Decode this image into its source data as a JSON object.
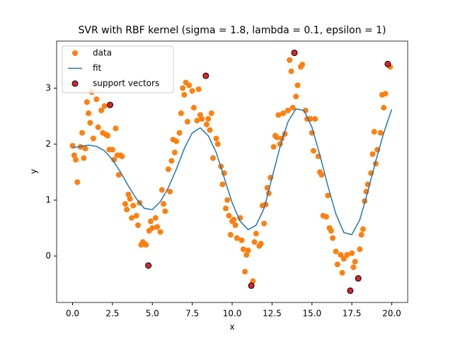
{
  "chart_data": {
    "type": "scatter",
    "title": "SVR with RBF kernel (sigma = 1.8, lambda = 0.1, epsilon = 1)",
    "x_label": "x",
    "y_label": "y",
    "xlim": [
      -1,
      21
    ],
    "ylim": [
      -0.83,
      3.84
    ],
    "xticks": [
      {
        "value": 0,
        "label": "0.0"
      },
      2.5,
      {
        "value": 5,
        "label": "5.0"
      },
      7.5,
      {
        "value": 10,
        "label": "10.0"
      },
      12.5,
      {
        "value": 15,
        "label": "15.0"
      },
      17.5,
      {
        "value": 20,
        "label": "20.0"
      }
    ],
    "yticks": [
      0,
      1,
      2,
      3
    ],
    "legend": "upper left",
    "series": [
      {
        "name": "data",
        "kind": "scatter",
        "color": "#ff7f0e",
        "x": [
          0,
          0.1,
          0.2,
          0.3,
          0.5,
          0.6,
          0.7,
          0.8,
          0.9,
          1.0,
          1.1,
          1.2,
          1.3,
          1.5,
          1.6,
          1.8,
          1.9,
          2.0,
          2.1,
          2.2,
          2.3,
          2.5,
          2.6,
          2.7,
          2.8,
          2.9,
          3.0,
          3.1,
          3.3,
          3.4,
          3.5,
          3.6,
          3.7,
          3.8,
          4.0,
          4.1,
          4.2,
          4.3,
          4.4,
          4.5,
          4.6,
          4.75,
          4.8,
          4.9,
          5.0,
          5.2,
          5.3,
          5.5,
          5.6,
          5.7,
          5.8,
          6.0,
          6.1,
          6.2,
          6.3,
          6.4,
          6.5,
          6.7,
          6.8,
          6.9,
          7.0,
          7.1,
          7.2,
          7.3,
          7.5,
          7.6,
          7.8,
          7.9,
          8.0,
          8.1,
          8.35,
          8.4,
          8.5,
          8.6,
          8.7,
          8.8,
          9.0,
          9.1,
          9.3,
          9.4,
          9.5,
          9.6,
          9.7,
          9.8,
          9.9,
          10.0,
          10.1,
          10.2,
          10.3,
          10.5,
          10.6,
          10.7,
          10.8,
          10.9,
          11.0,
          11.2,
          11.3,
          11.4,
          11.5,
          11.7,
          11.8,
          11.9,
          12.0,
          12.1,
          12.2,
          12.3,
          12.4,
          12.6,
          12.7,
          12.8,
          12.9,
          13.0,
          13.1,
          13.2,
          13.3,
          13.5,
          13.6,
          13.7,
          13.8,
          13.9,
          14.0,
          14.1,
          14.3,
          14.4,
          14.6,
          14.7,
          14.9,
          15.0,
          15.1,
          15.2,
          15.4,
          15.5,
          15.6,
          15.7,
          15.9,
          16.0,
          16.1,
          16.2,
          16.3,
          16.5,
          16.6,
          16.8,
          16.9,
          17.0,
          17.2,
          17.4,
          17.5,
          17.6,
          17.7,
          17.9,
          18.0,
          18.1,
          18.2,
          18.3,
          18.4,
          18.5,
          18.7,
          18.8,
          18.9,
          19.0,
          19.1,
          19.3,
          19.4,
          19.5,
          19.6,
          19.75,
          19.9
        ],
        "y": [
          1.97,
          1.8,
          1.72,
          1.32,
          1.95,
          2.2,
          1.75,
          1.92,
          2.75,
          2.55,
          2.38,
          2.93,
          2.1,
          2.8,
          2.3,
          2.6,
          2.2,
          2.68,
          2.17,
          2.15,
          1.9,
          1.9,
          1.72,
          2.28,
          1.8,
          1.45,
          1.8,
          1.78,
          0.93,
          0.83,
          1.1,
          1.02,
          0.68,
          0.9,
          0.72,
          0.55,
          0.95,
          0.2,
          0.25,
          0.22,
          0.2,
          -0.17,
          0.45,
          0.62,
          0.5,
          0.68,
          0.52,
          0.43,
          1.18,
          0.93,
          0.8,
          1.55,
          1.15,
          1.7,
          2.08,
          1.85,
          2.05,
          2.2,
          2.55,
          3.0,
          2.88,
          3.1,
          2.4,
          3.05,
          2.95,
          2.65,
          2.42,
          2.98,
          2.52,
          2.45,
          3.22,
          2.35,
          2.45,
          2.25,
          2.55,
          1.75,
          2.1,
          2.0,
          1.6,
          1.28,
          1.48,
          0.85,
          1.0,
          0.72,
          0.38,
          0.62,
          0.65,
          0.55,
          0.32,
          0.68,
          0.28,
          0.12,
          -0.28,
          0.02,
          0.1,
          -0.53,
          -0.45,
          0.25,
          0.4,
          0.18,
          0.22,
          0.9,
          0.58,
          0.92,
          1.22,
          1.12,
          1.4,
          1.95,
          2.15,
          2.12,
          2.52,
          2.0,
          2.1,
          2.55,
          2.18,
          2.6,
          3.5,
          3.3,
          2.65,
          3.63,
          2.85,
          3.05,
          3.38,
          3.42,
          2.6,
          2.45,
          2.45,
          2.2,
          1.88,
          2.45,
          1.78,
          1.5,
          1.45,
          0.72,
          0.7,
          1.08,
          0.5,
          0.45,
          0.32,
          0.08,
          -0.15,
          0.02,
          -0.3,
          -0.05,
          0.02,
          -0.62,
          0.05,
          -0.2,
          -0.1,
          -0.4,
          0.12,
          0.38,
          0.48,
          0.98,
          1.15,
          1.28,
          1.48,
          1.82,
          2.22,
          1.65,
          1.9,
          2.2,
          2.88,
          2.65,
          2.9,
          3.43,
          3.38
        ]
      },
      {
        "name": "fit",
        "kind": "line",
        "color": "#1f77b4",
        "x": [
          0,
          0.5,
          1,
          1.5,
          2,
          2.5,
          3,
          3.5,
          4,
          4.5,
          5,
          5.5,
          6,
          6.5,
          7,
          7.5,
          8,
          8.5,
          9,
          9.5,
          10,
          10.5,
          11,
          11.5,
          12,
          12.5,
          13,
          13.5,
          14,
          14.5,
          15,
          15.5,
          16,
          16.5,
          17,
          17.5,
          18,
          18.5,
          19,
          19.5,
          20
        ],
        "y": [
          1.93,
          1.96,
          1.98,
          1.96,
          1.88,
          1.72,
          1.5,
          1.25,
          1.02,
          0.85,
          0.83,
          0.97,
          1.22,
          1.55,
          1.92,
          2.2,
          2.29,
          2.15,
          1.85,
          1.4,
          0.95,
          0.62,
          0.47,
          0.55,
          0.85,
          1.4,
          1.95,
          2.4,
          2.63,
          2.6,
          2.3,
          1.8,
          1.25,
          0.75,
          0.42,
          0.38,
          0.65,
          1.15,
          1.7,
          2.2,
          2.62
        ]
      },
      {
        "name": "support vectors",
        "kind": "scatter",
        "color": "#d62728",
        "edgecolor": "#000000",
        "x": [
          2.35,
          4.75,
          8.35,
          11.2,
          13.9,
          17.4,
          17.9,
          19.75
        ],
        "y": [
          2.7,
          -0.17,
          3.22,
          -0.53,
          3.63,
          -0.62,
          -0.4,
          3.43
        ]
      }
    ]
  }
}
